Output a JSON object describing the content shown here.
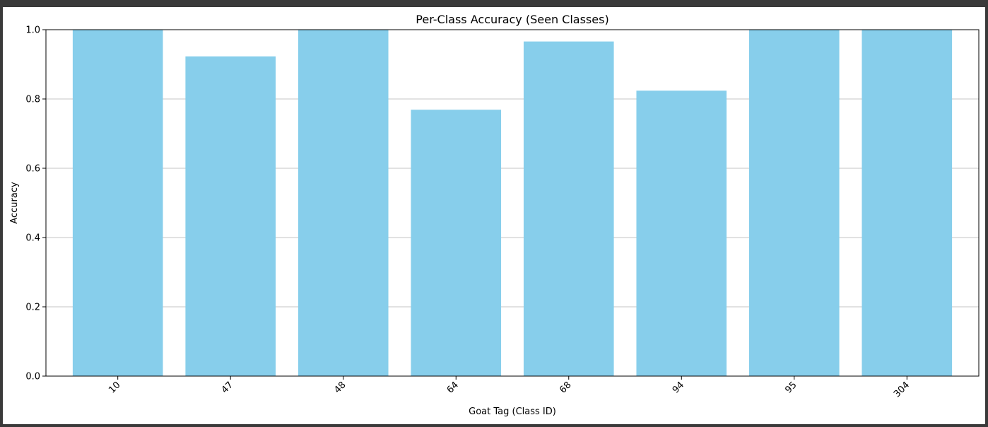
{
  "chart_data": {
    "type": "bar",
    "title": "Per-Class Accuracy (Seen Classes)",
    "xlabel": "Goat Tag (Class ID)",
    "ylabel": "Accuracy",
    "categories": [
      "10",
      "47",
      "48",
      "64",
      "68",
      "94",
      "95",
      "304"
    ],
    "values": [
      1.0,
      0.923,
      1.0,
      0.769,
      0.966,
      0.824,
      1.0,
      1.0
    ],
    "ylim": [
      0,
      1.0
    ],
    "yticks": [
      "0.0",
      "0.2",
      "0.4",
      "0.6",
      "0.8",
      "1.0"
    ],
    "grid": "y-axis",
    "bar_color": "#87ceeb",
    "xtick_rotation": "45-degrees"
  }
}
